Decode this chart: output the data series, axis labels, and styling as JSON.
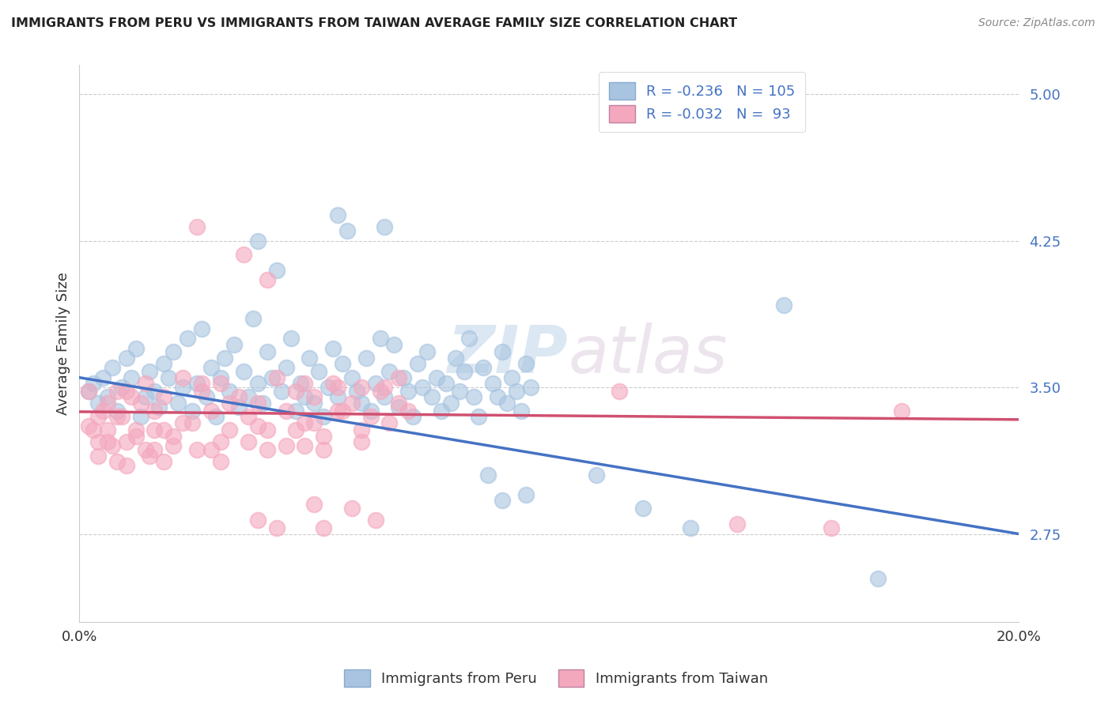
{
  "title": "IMMIGRANTS FROM PERU VS IMMIGRANTS FROM TAIWAN AVERAGE FAMILY SIZE CORRELATION CHART",
  "source": "Source: ZipAtlas.com",
  "ylabel": "Average Family Size",
  "yticks": [
    2.75,
    3.5,
    4.25,
    5.0
  ],
  "xlim": [
    0.0,
    0.2
  ],
  "ylim": [
    2.3,
    5.15
  ],
  "legend_peru_label": "R = -0.236   N = 105",
  "legend_taiwan_label": "R = -0.032   N =  93",
  "legend_footer_peru": "Immigrants from Peru",
  "legend_footer_taiwan": "Immigrants from Taiwan",
  "peru_color": "#a8c4e0",
  "peru_line_color": "#4472c4",
  "taiwan_color": "#f4a8be",
  "taiwan_line_color": "#d05070",
  "watermark": "ZIPatlas",
  "peru_intercept": 3.55,
  "peru_slope": -4.0,
  "taiwan_intercept": 3.375,
  "taiwan_slope": -0.2,
  "peru_points": [
    [
      0.002,
      3.48
    ],
    [
      0.003,
      3.52
    ],
    [
      0.004,
      3.42
    ],
    [
      0.005,
      3.55
    ],
    [
      0.006,
      3.45
    ],
    [
      0.007,
      3.6
    ],
    [
      0.008,
      3.38
    ],
    [
      0.009,
      3.5
    ],
    [
      0.01,
      3.65
    ],
    [
      0.011,
      3.55
    ],
    [
      0.012,
      3.7
    ],
    [
      0.013,
      3.35
    ],
    [
      0.014,
      3.45
    ],
    [
      0.015,
      3.58
    ],
    [
      0.016,
      3.48
    ],
    [
      0.017,
      3.4
    ],
    [
      0.018,
      3.62
    ],
    [
      0.019,
      3.55
    ],
    [
      0.02,
      3.68
    ],
    [
      0.021,
      3.42
    ],
    [
      0.022,
      3.5
    ],
    [
      0.023,
      3.75
    ],
    [
      0.024,
      3.38
    ],
    [
      0.025,
      3.52
    ],
    [
      0.026,
      3.8
    ],
    [
      0.027,
      3.45
    ],
    [
      0.028,
      3.6
    ],
    [
      0.029,
      3.35
    ],
    [
      0.03,
      3.55
    ],
    [
      0.031,
      3.65
    ],
    [
      0.032,
      3.48
    ],
    [
      0.033,
      3.72
    ],
    [
      0.034,
      3.4
    ],
    [
      0.035,
      3.58
    ],
    [
      0.036,
      3.45
    ],
    [
      0.037,
      3.85
    ],
    [
      0.038,
      3.52
    ],
    [
      0.039,
      3.42
    ],
    [
      0.04,
      3.68
    ],
    [
      0.041,
      3.55
    ],
    [
      0.042,
      4.1
    ],
    [
      0.043,
      3.48
    ],
    [
      0.044,
      3.6
    ],
    [
      0.045,
      3.75
    ],
    [
      0.046,
      3.38
    ],
    [
      0.047,
      3.52
    ],
    [
      0.048,
      3.45
    ],
    [
      0.049,
      3.65
    ],
    [
      0.05,
      3.42
    ],
    [
      0.051,
      3.58
    ],
    [
      0.052,
      3.35
    ],
    [
      0.053,
      3.5
    ],
    [
      0.054,
      3.7
    ],
    [
      0.055,
      3.45
    ],
    [
      0.056,
      3.62
    ],
    [
      0.057,
      4.3
    ],
    [
      0.058,
      3.55
    ],
    [
      0.059,
      3.48
    ],
    [
      0.06,
      3.42
    ],
    [
      0.061,
      3.65
    ],
    [
      0.062,
      3.38
    ],
    [
      0.063,
      3.52
    ],
    [
      0.064,
      3.75
    ],
    [
      0.065,
      3.45
    ],
    [
      0.066,
      3.58
    ],
    [
      0.067,
      3.72
    ],
    [
      0.068,
      3.4
    ],
    [
      0.069,
      3.55
    ],
    [
      0.07,
      3.48
    ],
    [
      0.071,
      3.35
    ],
    [
      0.072,
      3.62
    ],
    [
      0.073,
      3.5
    ],
    [
      0.074,
      3.68
    ],
    [
      0.075,
      3.45
    ],
    [
      0.076,
      3.55
    ],
    [
      0.077,
      3.38
    ],
    [
      0.078,
      3.52
    ],
    [
      0.079,
      3.42
    ],
    [
      0.08,
      3.65
    ],
    [
      0.081,
      3.48
    ],
    [
      0.082,
      3.58
    ],
    [
      0.083,
      3.75
    ],
    [
      0.084,
      3.45
    ],
    [
      0.085,
      3.35
    ],
    [
      0.086,
      3.6
    ],
    [
      0.088,
      3.52
    ],
    [
      0.089,
      3.45
    ],
    [
      0.09,
      3.68
    ],
    [
      0.091,
      3.42
    ],
    [
      0.092,
      3.55
    ],
    [
      0.093,
      3.48
    ],
    [
      0.094,
      3.38
    ],
    [
      0.095,
      3.62
    ],
    [
      0.096,
      3.5
    ],
    [
      0.038,
      4.25
    ],
    [
      0.055,
      4.38
    ],
    [
      0.065,
      4.32
    ],
    [
      0.15,
      3.92
    ],
    [
      0.087,
      3.05
    ],
    [
      0.09,
      2.92
    ],
    [
      0.095,
      2.95
    ],
    [
      0.11,
      3.05
    ],
    [
      0.12,
      2.88
    ],
    [
      0.13,
      2.78
    ],
    [
      0.17,
      2.52
    ]
  ],
  "taiwan_points": [
    [
      0.002,
      3.3
    ],
    [
      0.004,
      3.22
    ],
    [
      0.006,
      3.42
    ],
    [
      0.008,
      3.35
    ],
    [
      0.01,
      3.48
    ],
    [
      0.012,
      3.28
    ],
    [
      0.014,
      3.52
    ],
    [
      0.016,
      3.38
    ],
    [
      0.018,
      3.45
    ],
    [
      0.02,
      3.25
    ],
    [
      0.022,
      3.55
    ],
    [
      0.024,
      3.32
    ],
    [
      0.026,
      3.48
    ],
    [
      0.028,
      3.38
    ],
    [
      0.03,
      3.52
    ],
    [
      0.032,
      3.28
    ],
    [
      0.034,
      3.45
    ],
    [
      0.036,
      3.35
    ],
    [
      0.038,
      3.42
    ],
    [
      0.04,
      3.28
    ],
    [
      0.042,
      3.55
    ],
    [
      0.044,
      3.38
    ],
    [
      0.046,
      3.48
    ],
    [
      0.048,
      3.32
    ],
    [
      0.05,
      3.45
    ],
    [
      0.052,
      3.25
    ],
    [
      0.054,
      3.52
    ],
    [
      0.056,
      3.38
    ],
    [
      0.058,
      3.42
    ],
    [
      0.06,
      3.28
    ],
    [
      0.062,
      3.35
    ],
    [
      0.064,
      3.48
    ],
    [
      0.066,
      3.32
    ],
    [
      0.068,
      3.55
    ],
    [
      0.07,
      3.38
    ],
    [
      0.025,
      4.32
    ],
    [
      0.035,
      4.18
    ],
    [
      0.03,
      3.22
    ],
    [
      0.038,
      2.82
    ],
    [
      0.042,
      2.78
    ],
    [
      0.05,
      2.9
    ],
    [
      0.058,
      2.88
    ],
    [
      0.115,
      3.48
    ],
    [
      0.16,
      2.78
    ],
    [
      0.14,
      2.8
    ],
    [
      0.175,
      3.38
    ],
    [
      0.044,
      3.2
    ],
    [
      0.02,
      3.2
    ],
    [
      0.015,
      3.15
    ],
    [
      0.018,
      3.12
    ],
    [
      0.025,
      3.18
    ],
    [
      0.048,
      3.2
    ],
    [
      0.016,
      3.28
    ],
    [
      0.022,
      3.32
    ],
    [
      0.01,
      3.1
    ],
    [
      0.012,
      3.25
    ],
    [
      0.014,
      3.18
    ],
    [
      0.008,
      3.12
    ],
    [
      0.006,
      3.22
    ],
    [
      0.004,
      3.15
    ],
    [
      0.003,
      3.28
    ],
    [
      0.005,
      3.38
    ],
    [
      0.007,
      3.2
    ],
    [
      0.009,
      3.35
    ],
    [
      0.011,
      3.45
    ],
    [
      0.013,
      3.42
    ],
    [
      0.032,
      3.42
    ],
    [
      0.026,
      3.52
    ],
    [
      0.04,
      4.05
    ],
    [
      0.048,
      3.52
    ],
    [
      0.055,
      3.5
    ],
    [
      0.06,
      3.5
    ],
    [
      0.065,
      3.5
    ],
    [
      0.063,
      2.82
    ],
    [
      0.052,
      2.78
    ],
    [
      0.052,
      3.18
    ],
    [
      0.002,
      3.48
    ],
    [
      0.004,
      3.35
    ],
    [
      0.006,
      3.28
    ],
    [
      0.008,
      3.48
    ],
    [
      0.01,
      3.22
    ],
    [
      0.016,
      3.18
    ],
    [
      0.018,
      3.28
    ],
    [
      0.028,
      3.18
    ],
    [
      0.03,
      3.12
    ],
    [
      0.036,
      3.22
    ],
    [
      0.038,
      3.3
    ],
    [
      0.04,
      3.18
    ],
    [
      0.046,
      3.28
    ],
    [
      0.05,
      3.32
    ],
    [
      0.055,
      3.38
    ],
    [
      0.06,
      3.22
    ],
    [
      0.068,
      3.42
    ]
  ]
}
